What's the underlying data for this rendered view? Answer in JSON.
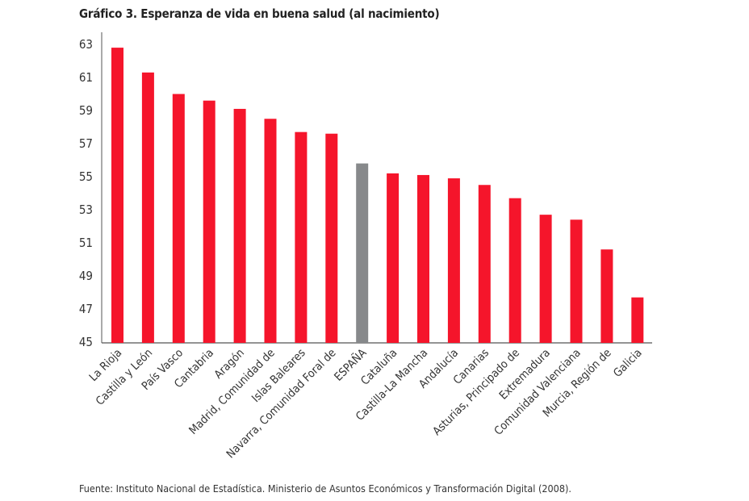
{
  "chart_data": {
    "type": "bar",
    "title": "Gráfico 3. Esperanza de vida en buena salud (al nacimiento)",
    "source": "Fuente: Instituto Nacional de Estadística. Ministerio de Asuntos Económicos y Transformación Digital (2008).",
    "categories": [
      "La Rioja",
      "Castilla y León",
      "País Vasco",
      "Cantabria",
      "Aragón",
      "Madrid, Comunidad de",
      "Islas Baleares",
      "Navarra, Comunidad Foral de",
      "ESPAÑA",
      "Cataluña",
      "Castilla-La Mancha",
      "Andalucía",
      "Canarias",
      "Asturias, Principado de",
      "Extremadura",
      "Comunidad Valenciana",
      "Murcia, Región de",
      "Galicia"
    ],
    "values": [
      62.8,
      61.3,
      60.0,
      59.6,
      59.1,
      58.5,
      57.7,
      57.6,
      55.8,
      55.2,
      55.1,
      54.9,
      54.5,
      53.7,
      52.7,
      52.4,
      50.6,
      47.7
    ],
    "highlight": "ESPAÑA",
    "colors": {
      "bar": "#f5152b",
      "highlight": "#87898b",
      "axis": "#555555"
    },
    "ylim": [
      45,
      63
    ],
    "yticks": [
      45,
      47,
      49,
      51,
      53,
      55,
      57,
      59,
      61,
      63
    ],
    "xlabel": "",
    "ylabel": "",
    "grid": false
  }
}
